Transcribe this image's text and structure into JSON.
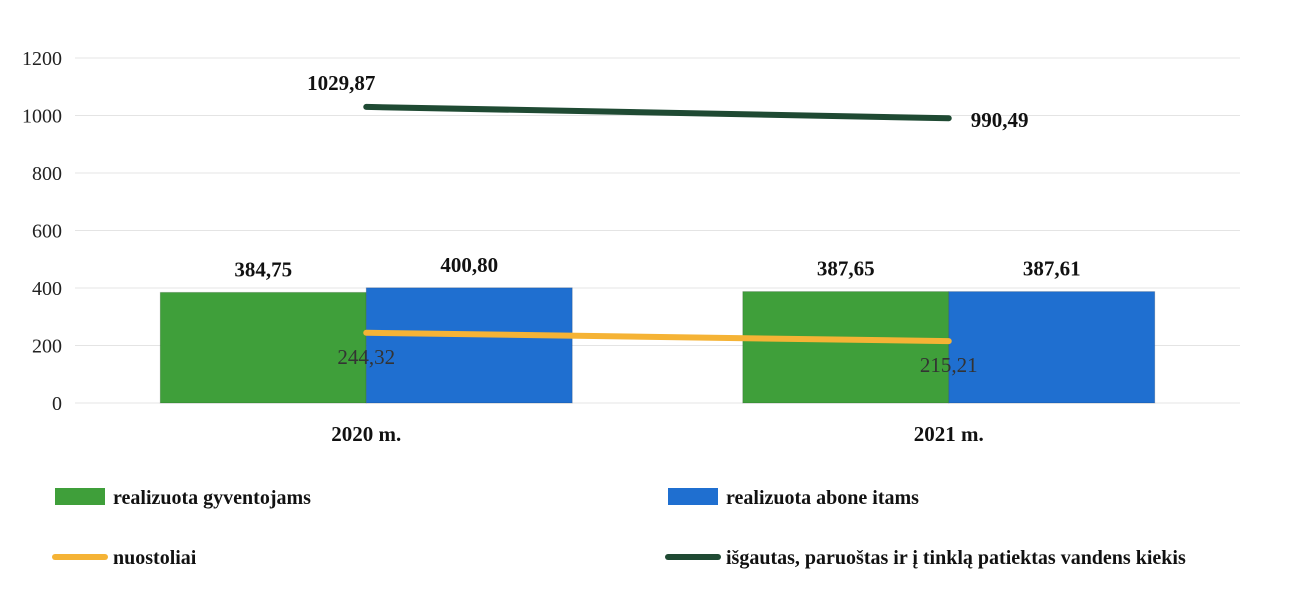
{
  "chart_data": {
    "type": "bar",
    "categories": [
      "2020 m.",
      "2021 m."
    ],
    "ylim": [
      0,
      1200
    ],
    "yticks": [
      0,
      200,
      400,
      600,
      800,
      1000,
      1200
    ],
    "grid": true,
    "legend_position": "bottom",
    "series": [
      {
        "name": "realizuota gyventojams",
        "type": "bar",
        "color": "#3f9f3a",
        "values": [
          384.75,
          387.65
        ],
        "labels": [
          "384,75",
          "387,65"
        ]
      },
      {
        "name": "realizuota abone itams",
        "type": "bar",
        "color": "#1f6fd0",
        "values": [
          400.8,
          387.61
        ],
        "labels": [
          "400,80",
          "387,61"
        ]
      },
      {
        "name": "nuostoliai",
        "type": "line",
        "color": "#f5b335",
        "values": [
          244.32,
          215.21
        ],
        "labels": [
          "244,32",
          "215,21"
        ]
      },
      {
        "name": "išgautas, paruoštas ir į tinklą patiektas vandens kiekis",
        "type": "line",
        "color": "#1f4a33",
        "values": [
          1029.87,
          990.49
        ],
        "labels": [
          "1029,87",
          "990,49"
        ]
      }
    ]
  }
}
